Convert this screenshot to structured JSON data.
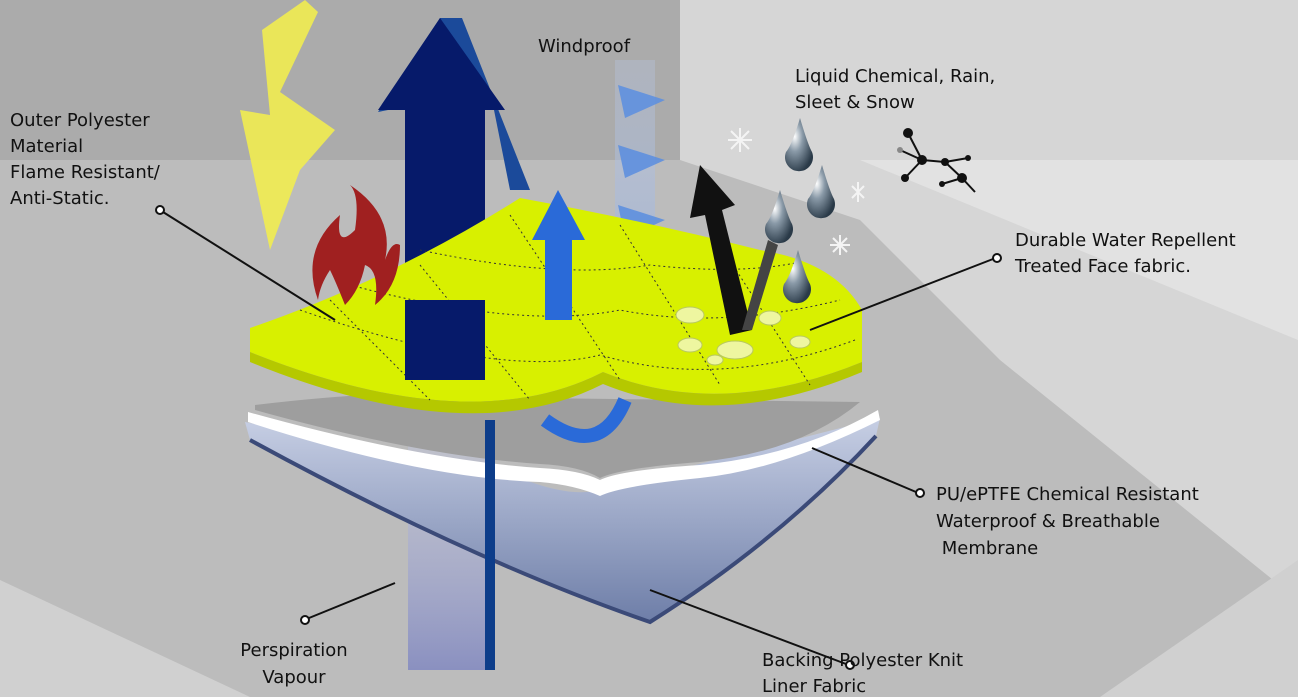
{
  "labels": [
    {
      "lines": [
        "Windproof"
      ]
    },
    {
      "lines": [
        "Liquid Chemical, Rain,",
        "Sleet & Snow"
      ]
    },
    {
      "lines": [
        "Outer Polyester",
        "Material",
        "Flame Resistant/",
        "Anti-Static."
      ]
    },
    {
      "lines": [
        "Durable Water Repellent",
        "Treated Face fabric."
      ]
    },
    {
      "lines": [
        "PU/ePTFE Chemical Resistant",
        "Waterproof & Breathable",
        " Membrane"
      ]
    },
    {
      "lines": [
        "Perspiration",
        "Vapour"
      ]
    },
    {
      "lines": [
        "Backing Polyester Knit",
        "Liner Fabric"
      ]
    }
  ]
}
